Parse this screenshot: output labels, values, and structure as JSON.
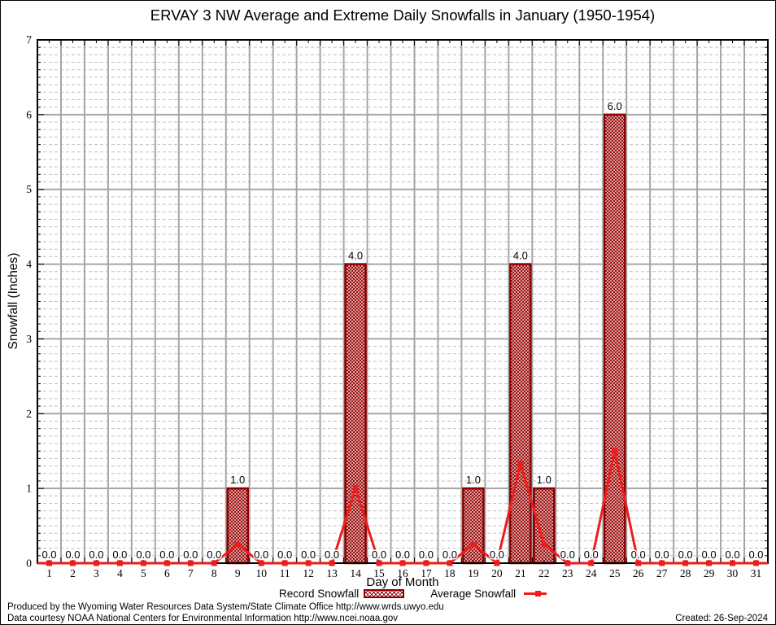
{
  "title": "ERVAY 3 NW Average and Extreme Daily Snowfalls in January (1950-1954)",
  "chart_data": {
    "type": "bar",
    "title": "ERVAY 3 NW Average and Extreme Daily Snowfalls in January (1950-1954)",
    "xlabel": "Day of Month",
    "ylabel": "Snowfall (Inches)",
    "xlim": [
      0.5,
      31.5
    ],
    "ylim": [
      0,
      7
    ],
    "ytick_step": 1,
    "minor_tick_step": 0.1,
    "grid": "major solid + minor dashed horizontal, solid vertical at half-day positions",
    "legend_position": "bottom-center",
    "days": [
      1,
      2,
      3,
      4,
      5,
      6,
      7,
      8,
      9,
      10,
      11,
      12,
      13,
      14,
      15,
      16,
      17,
      18,
      19,
      20,
      21,
      22,
      23,
      24,
      25,
      26,
      27,
      28,
      29,
      30,
      31
    ],
    "ytick_labels": [
      "0",
      "1",
      "2",
      "3",
      "4",
      "5",
      "6",
      "7"
    ],
    "series": [
      {
        "name": "Record Snowfall",
        "type": "bar",
        "values": [
          0,
          0,
          0,
          0,
          0,
          0,
          0,
          0,
          1,
          0,
          0,
          0,
          0,
          4,
          0,
          0,
          0,
          0,
          1,
          0,
          4,
          1,
          0,
          0,
          6,
          0,
          0,
          0,
          0,
          0,
          0
        ]
      },
      {
        "name": "Average Snowfall",
        "type": "line",
        "values": [
          0,
          0,
          0,
          0,
          0,
          0,
          0,
          0,
          0.25,
          0,
          0,
          0,
          0,
          1.0,
          0,
          0,
          0,
          0,
          0.25,
          0,
          1.33,
          0.25,
          0,
          0,
          1.5,
          0,
          0,
          0,
          0,
          0,
          0
        ]
      }
    ],
    "value_labels": [
      "0.0",
      "0.0",
      "0.0",
      "0.0",
      "0.0",
      "0.0",
      "0.0",
      "0.0",
      "1.0",
      "0.0",
      "0.0",
      "0.0",
      "0.0",
      "4.0",
      "0.0",
      "0.0",
      "0.0",
      "0.0",
      "1.0",
      "0.0",
      "4.0",
      "1.0",
      "0.0",
      "0.0",
      "6.0",
      "0.0",
      "0.0",
      "0.0",
      "0.0",
      "0.0",
      "0.0"
    ]
  },
  "colors": {
    "bar_border": "#8b0000",
    "bar_hatch": "#9b0d0d",
    "line": "#ee1c1c",
    "grid_major": "#a6a6a6",
    "grid_minor": "#c0c0c0",
    "plot_border": "#000000"
  },
  "footer": {
    "line1": "Produced by the Wyoming Water Resources Data System/State Climate Office http://www.wrds.uwyo.edu",
    "line2": "Data courtesy NOAA National Centers for Environmental Information http://www.ncei.noaa.gov",
    "created": "Created: 26-Sep-2024"
  }
}
